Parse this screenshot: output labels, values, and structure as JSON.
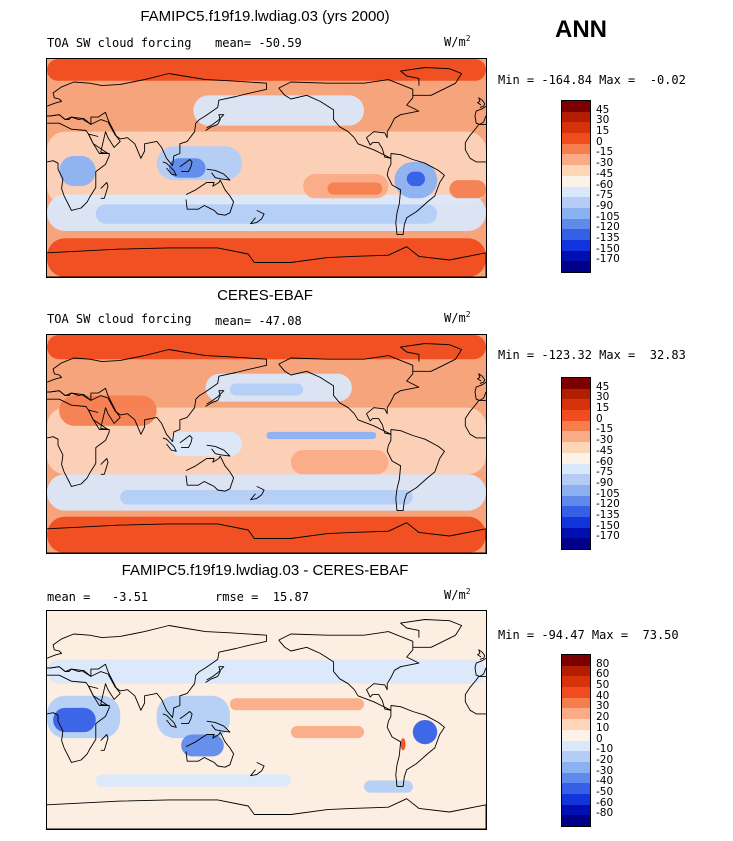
{
  "season_label": "ANN",
  "panels": [
    {
      "title": "FAMIPC5.f19f19.lwdiag.03 (yrs 2000)",
      "left_label": "TOA SW cloud forcing",
      "stat1": "mean= -50.59",
      "stat2": "",
      "units": "W/m",
      "units_exp": "2",
      "minmax": "Min = -164.84 Max =  -0.02",
      "levels": [
        "45",
        "30",
        "15",
        "0",
        "-15",
        "-30",
        "-45",
        "-60",
        "-75",
        "-90",
        "-105",
        "-120",
        "-135",
        "-150",
        "-170"
      ],
      "colors": [
        "#7d0000",
        "#b41e00",
        "#d7330a",
        "#f04c1e",
        "#f57e4f",
        "#fbab86",
        "#fdd5b9",
        "#fdf2e8",
        "#dae8fb",
        "#b3cdf7",
        "#8bb1f2",
        "#5f8aeb",
        "#3560e6",
        "#1234dc",
        "#0010b0",
        "#00008a"
      ]
    },
    {
      "title": "CERES-EBAF",
      "left_label": "TOA SW cloud forcing",
      "stat1": "mean= -47.08",
      "stat2": "",
      "units": "W/m",
      "units_exp": "2",
      "minmax": "Min = -123.32 Max =  32.83",
      "levels": [
        "45",
        "30",
        "15",
        "0",
        "-15",
        "-30",
        "-45",
        "-60",
        "-75",
        "-90",
        "-105",
        "-120",
        "-135",
        "-150",
        "-170"
      ],
      "colors": [
        "#7d0000",
        "#b41e00",
        "#d7330a",
        "#f04c1e",
        "#f57e4f",
        "#fbab86",
        "#fdd5b9",
        "#fdf2e8",
        "#dae8fb",
        "#b3cdf7",
        "#8bb1f2",
        "#5f8aeb",
        "#3560e6",
        "#1234dc",
        "#0010b0",
        "#00008a"
      ]
    },
    {
      "title": "FAMIPC5.f19f19.lwdiag.03 - CERES-EBAF",
      "left_label": "mean =   -3.51",
      "stat1": "rmse =  15.87",
      "stat2": "",
      "units": "W/m",
      "units_exp": "2",
      "minmax": "Min = -94.47 Max =  73.50",
      "levels": [
        "80",
        "60",
        "50",
        "40",
        "30",
        "20",
        "10",
        "0",
        "-10",
        "-20",
        "-30",
        "-40",
        "-50",
        "-60",
        "-80"
      ],
      "colors": [
        "#7d0000",
        "#b41e00",
        "#d7330a",
        "#f04c1e",
        "#f57e4f",
        "#fbab86",
        "#fdd5b9",
        "#fdf2e8",
        "#dae8fb",
        "#b3cdf7",
        "#8bb1f2",
        "#5f8aeb",
        "#3560e6",
        "#1234dc",
        "#0010b0",
        "#00008a"
      ]
    }
  ],
  "chart_data": [
    {
      "type": "heatmap",
      "title": "FAMIPC5.f19f19.lwdiag.03 (yrs 2000)",
      "variable": "TOA SW cloud forcing",
      "units": "W/m2",
      "mean": -50.59,
      "min": -164.84,
      "max": -0.02,
      "contour_levels": [
        45,
        30,
        15,
        0,
        -15,
        -30,
        -45,
        -60,
        -75,
        -90,
        -105,
        -120,
        -135,
        -150,
        -170
      ]
    },
    {
      "type": "heatmap",
      "title": "CERES-EBAF",
      "variable": "TOA SW cloud forcing",
      "units": "W/m2",
      "mean": -47.08,
      "min": -123.32,
      "max": 32.83,
      "contour_levels": [
        45,
        30,
        15,
        0,
        -15,
        -30,
        -45,
        -60,
        -75,
        -90,
        -105,
        -120,
        -135,
        -150,
        -170
      ]
    },
    {
      "type": "heatmap",
      "title": "FAMIPC5.f19f19.lwdiag.03 - CERES-EBAF",
      "units": "W/m2",
      "mean": -3.51,
      "rmse": 15.87,
      "min": -94.47,
      "max": 73.5,
      "contour_levels": [
        80,
        60,
        50,
        40,
        30,
        20,
        10,
        0,
        -10,
        -20,
        -30,
        -40,
        -50,
        -60,
        -80
      ]
    }
  ]
}
